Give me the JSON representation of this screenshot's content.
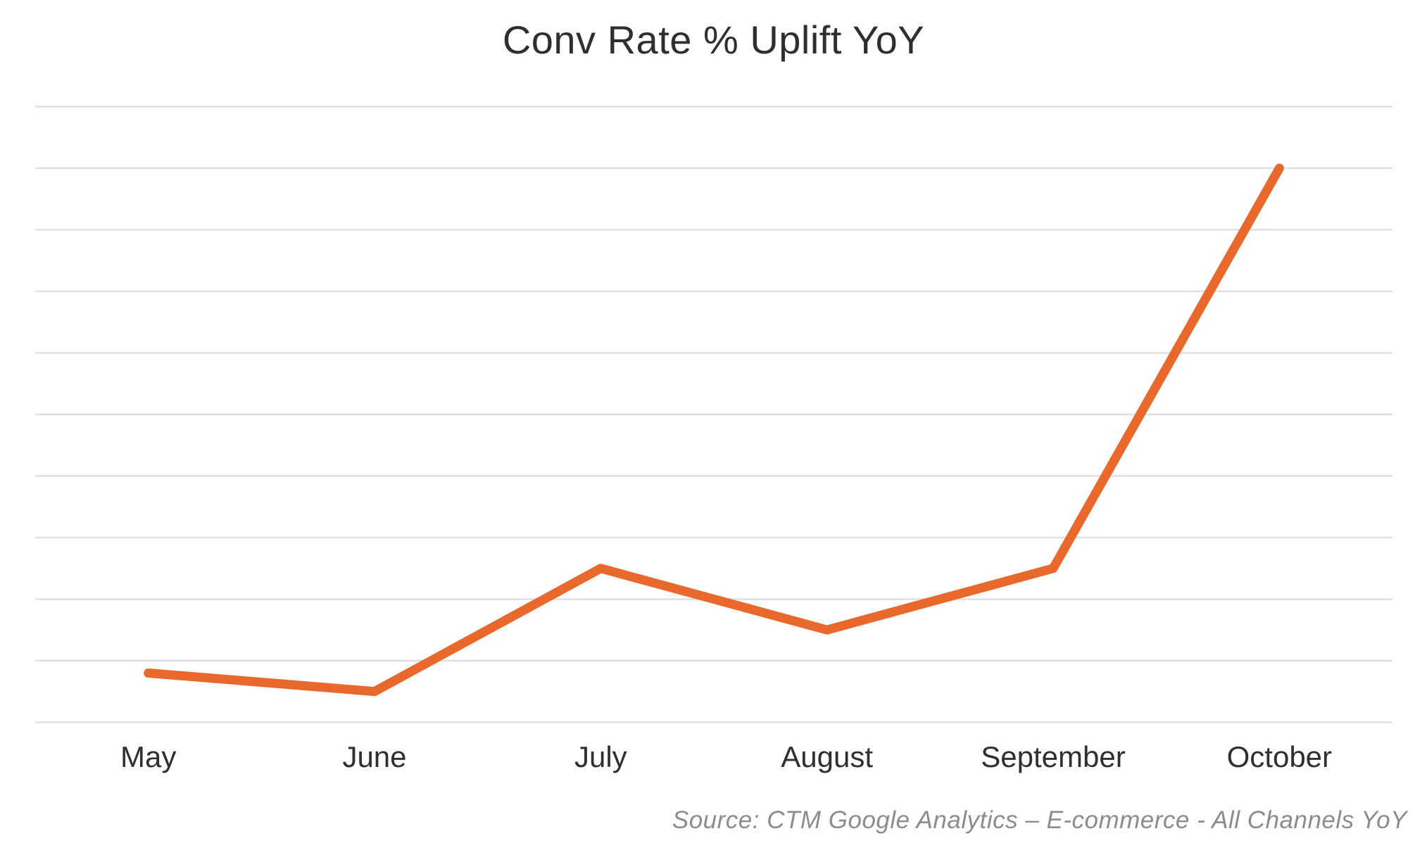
{
  "chart_data": {
    "type": "line",
    "title": "Conv Rate % Uplift YoY",
    "categories": [
      "May",
      "June",
      "July",
      "August",
      "September",
      "October"
    ],
    "series": [
      {
        "name": "Conv Rate % Uplift YoY",
        "values": [
          0.8,
          0.5,
          2.5,
          1.5,
          2.5,
          9.0
        ]
      }
    ],
    "xlabel": "",
    "ylabel": "",
    "ylim": [
      0,
      10
    ],
    "gridline_step": 1,
    "grid": "horizontal",
    "y_axis_labels_visible": false,
    "legend": "none",
    "source": "Source: CTM Google Analytics – E-commerce - All Channels YoY",
    "colors": {
      "line": "#E8692B",
      "gridline": "#E0E0E0",
      "title_text": "#2F2F2F",
      "axis_label_text": "#2F2F2F",
      "source_text": "#8C8C8C",
      "background": "#FFFFFF"
    }
  }
}
